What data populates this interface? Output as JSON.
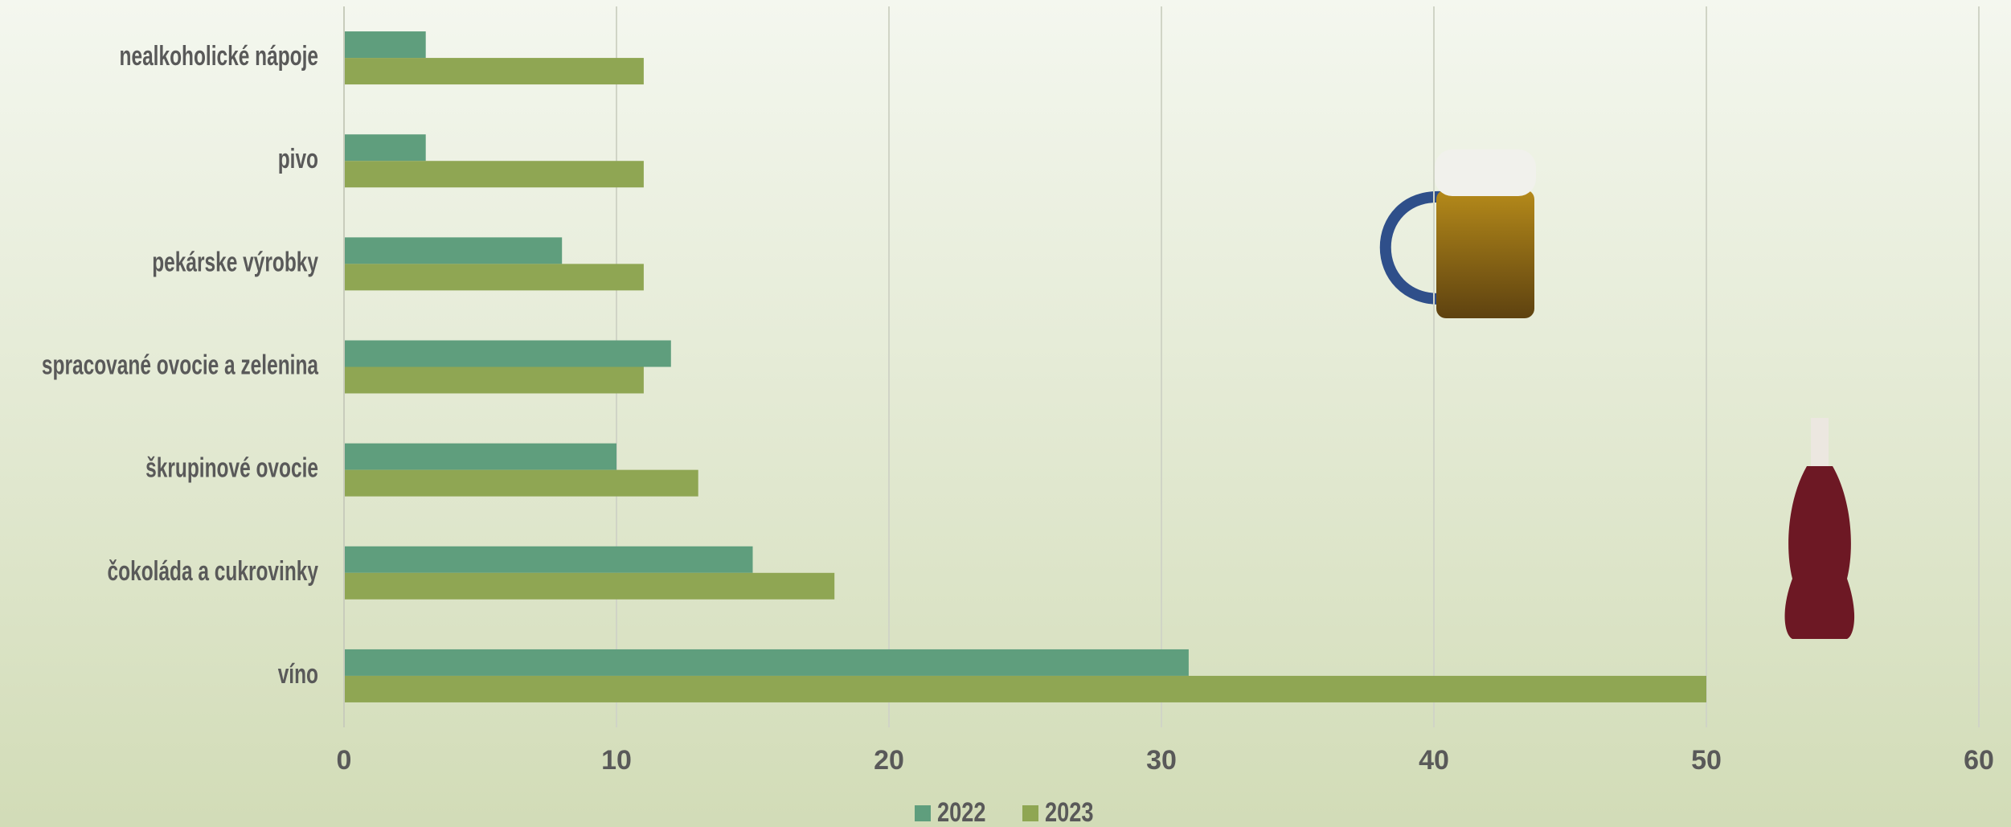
{
  "chart_data": {
    "type": "bar",
    "orientation": "horizontal",
    "categories": [
      "nealkoholické nápoje",
      "pivo",
      "pekárske výrobky",
      "spracované ovocie a zelenina",
      "škrupinové ovocie",
      "čokoláda a cukrovinky",
      "víno"
    ],
    "series": [
      {
        "name": "2022",
        "color": "#5f9e7d",
        "values": [
          3,
          3,
          8,
          12,
          10,
          15,
          31
        ]
      },
      {
        "name": "2023",
        "color": "#8fa653",
        "values": [
          11,
          11,
          11,
          11,
          13,
          18,
          50
        ]
      }
    ],
    "xlim": [
      0,
      60
    ],
    "xticks": [
      0,
      10,
      20,
      30,
      40,
      50,
      60
    ],
    "grid": true,
    "legend": "bottom"
  }
}
